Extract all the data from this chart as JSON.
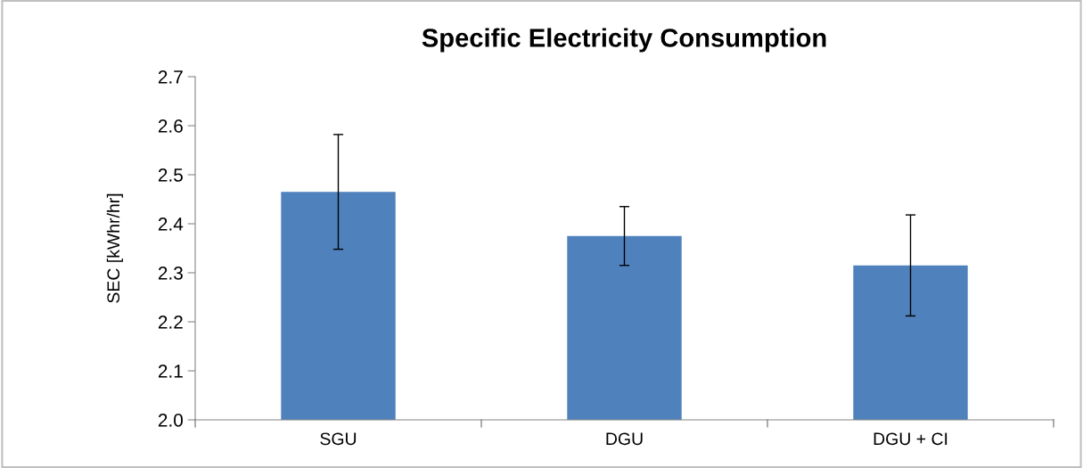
{
  "chart_data": {
    "type": "bar",
    "title": "Specific Electricity Consumption",
    "ylabel": "SEC [kWhr/hr]",
    "categories": [
      "SGU",
      "DGU",
      "DGU + CI"
    ],
    "values": [
      2.465,
      2.375,
      2.315
    ],
    "errors": [
      0.117,
      0.06,
      0.103
    ],
    "color": "#4f81bd",
    "ylim": [
      2.0,
      2.7
    ],
    "yticks": [
      {
        "value": 2.0,
        "label": "2.0"
      },
      {
        "value": 2.1,
        "label": "2.1"
      },
      {
        "value": 2.2,
        "label": "2.2"
      },
      {
        "value": 2.3,
        "label": "2.3"
      },
      {
        "value": 2.4,
        "label": "2.4"
      },
      {
        "value": 2.5,
        "label": "2.5"
      },
      {
        "value": 2.6,
        "label": "2.6"
      },
      {
        "value": 2.7,
        "label": "2.7"
      }
    ],
    "grid": false
  }
}
